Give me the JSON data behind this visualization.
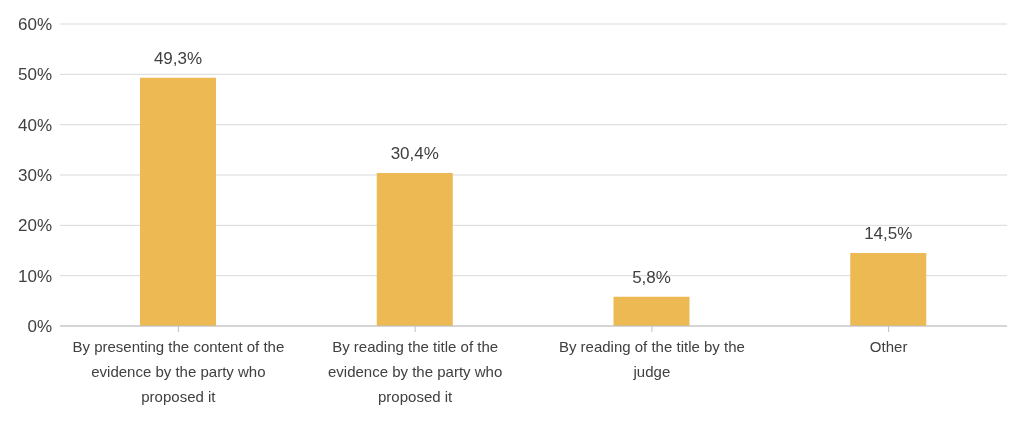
{
  "chart_data": {
    "type": "bar",
    "categories": [
      "By presenting the content of the evidence by the party who proposed it",
      "By reading the title of the evidence by the party who proposed it",
      "By reading of the title by the judge",
      "Other"
    ],
    "values": [
      49.3,
      30.4,
      5.8,
      14.5
    ],
    "value_labels": [
      "49,3%",
      "30,4%",
      "5,8%",
      "14,5%"
    ],
    "color": "#edb952",
    "ylim": [
      0,
      60
    ],
    "yticks": [
      {
        "value": 0,
        "label": "0%"
      },
      {
        "value": 10,
        "label": "10%"
      },
      {
        "value": 20,
        "label": "20%"
      },
      {
        "value": 30,
        "label": "30%"
      },
      {
        "value": 40,
        "label": "40%"
      },
      {
        "value": 50,
        "label": "50%"
      },
      {
        "value": 60,
        "label": "60%"
      }
    ],
    "grid": "y"
  }
}
